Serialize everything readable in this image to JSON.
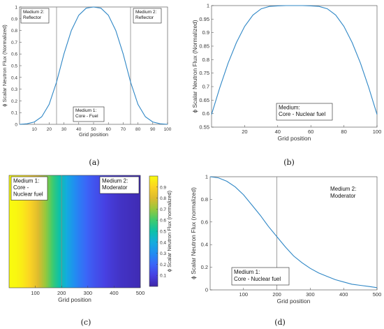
{
  "figure": {
    "panel_labels": [
      "(a)",
      "(b)",
      "(c)",
      "(d)"
    ]
  },
  "chart_data": [
    {
      "type": "line",
      "panel": "(a)",
      "xlabel": "Grid position",
      "ylabel": "ϕ Scalar Neutron Flux (Normalized)",
      "xlim": [
        0,
        100
      ],
      "ylim": [
        0,
        1
      ],
      "xticks": [
        "10",
        "20",
        "30",
        "40",
        "50",
        "60",
        "70",
        "80",
        "90",
        "100"
      ],
      "yticks": [
        "0",
        "0.1",
        "0.2",
        "0.3",
        "0.4",
        "0.5",
        "0.6",
        "0.7",
        "0.8",
        "0.9",
        "1"
      ],
      "boundaries": [
        25,
        75
      ],
      "annotations": [
        {
          "lines": [
            "Medium 2:",
            "Reflector"
          ]
        },
        {
          "lines": [
            "Medium 1:",
            "Core - Fuel"
          ]
        },
        {
          "lines": [
            "Medium 2:",
            "Reflector"
          ]
        }
      ],
      "x": [
        0,
        5,
        10,
        15,
        20,
        25,
        30,
        35,
        40,
        45,
        50,
        55,
        60,
        65,
        70,
        75,
        80,
        85,
        90,
        95,
        100
      ],
      "y": [
        0.0,
        0.005,
        0.02,
        0.065,
        0.17,
        0.36,
        0.6,
        0.8,
        0.93,
        0.99,
        1.0,
        0.99,
        0.93,
        0.8,
        0.6,
        0.36,
        0.17,
        0.065,
        0.02,
        0.005,
        0.0
      ]
    },
    {
      "type": "line",
      "panel": "(b)",
      "xlabel": "Grid position",
      "ylabel": "ϕ Scalar Neutron Flux (Normalized)",
      "xlim": [
        0,
        100
      ],
      "ylim": [
        0.55,
        1
      ],
      "xticks": [
        "20",
        "40",
        "60",
        "80",
        "100"
      ],
      "yticks": [
        "0.55",
        "0.6",
        "0.65",
        "0.7",
        "0.75",
        "0.8",
        "0.85",
        "0.9",
        "0.95",
        "1"
      ],
      "annotations": [
        {
          "lines": [
            "Medium:",
            "Core - Nuclear fuel"
          ]
        }
      ],
      "x": [
        0,
        5,
        10,
        15,
        20,
        25,
        30,
        35,
        40,
        45,
        50,
        55,
        60,
        65,
        70,
        75,
        80,
        85,
        90,
        95,
        100
      ],
      "y": [
        0.597,
        0.697,
        0.787,
        0.863,
        0.923,
        0.965,
        0.988,
        0.997,
        0.999,
        1.0,
        1.0,
        1.0,
        0.999,
        0.997,
        0.988,
        0.965,
        0.923,
        0.863,
        0.787,
        0.697,
        0.597
      ]
    },
    {
      "type": "heatmap",
      "panel": "(c)",
      "xlabel": "Grid position",
      "colorbar_label": "ϕ Scalar Neutron Flux (normalized)",
      "xlim": [
        0,
        500
      ],
      "xticks": [
        "100",
        "200",
        "300",
        "400",
        "500"
      ],
      "colorbar_ticks": [
        "0.1",
        "0.2",
        "0.3",
        "0.4",
        "0.5",
        "0.6",
        "0.7",
        "0.8",
        "0.9"
      ],
      "colormap": "parula",
      "boundary": 200,
      "annotations": [
        {
          "lines": [
            "Medium 1:",
            "Core -",
            "Nuclear fuel"
          ]
        },
        {
          "lines": [
            "Medium 2:",
            "Moderator"
          ]
        }
      ],
      "x": [
        0,
        25,
        50,
        75,
        100,
        125,
        150,
        175,
        200,
        225,
        250,
        275,
        300,
        325,
        350,
        375,
        400,
        425,
        450,
        475,
        500
      ],
      "values": [
        1.0,
        0.99,
        0.96,
        0.91,
        0.84,
        0.75,
        0.66,
        0.56,
        0.47,
        0.38,
        0.3,
        0.24,
        0.19,
        0.15,
        0.12,
        0.09,
        0.07,
        0.05,
        0.04,
        0.03,
        0.02
      ]
    },
    {
      "type": "line",
      "panel": "(d)",
      "xlabel": "Grid position",
      "ylabel": "ϕ Scalar Neutron Flux (normalized)",
      "xlim": [
        0,
        500
      ],
      "ylim": [
        0,
        1
      ],
      "xticks": [
        "100",
        "200",
        "300",
        "400",
        "500"
      ],
      "yticks": [
        "0",
        "0.2",
        "0.4",
        "0.6",
        "0.8",
        "1"
      ],
      "boundaries": [
        200
      ],
      "annotations": [
        {
          "lines": [
            "Medium 1:",
            "Core - Nuclear fuel"
          ]
        },
        {
          "lines": [
            "Medium 2:",
            "Moderator"
          ]
        }
      ],
      "x": [
        0,
        25,
        50,
        75,
        100,
        125,
        150,
        175,
        200,
        225,
        250,
        275,
        300,
        325,
        350,
        375,
        400,
        425,
        450,
        475,
        500
      ],
      "y": [
        1.0,
        0.99,
        0.96,
        0.91,
        0.84,
        0.75,
        0.66,
        0.56,
        0.47,
        0.38,
        0.3,
        0.24,
        0.19,
        0.15,
        0.12,
        0.09,
        0.07,
        0.05,
        0.04,
        0.03,
        0.02
      ]
    }
  ]
}
